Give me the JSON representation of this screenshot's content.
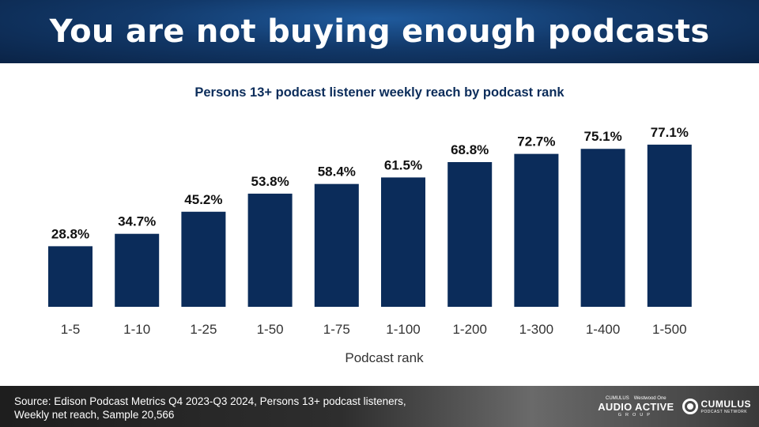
{
  "header": {
    "title": "You are not buying enough podcasts"
  },
  "chart_data": {
    "type": "bar",
    "title": "Persons 13+ podcast listener weekly reach by podcast rank",
    "xlabel": "Podcast rank",
    "ylabel": "",
    "categories": [
      "1-5",
      "1-10",
      "1-25",
      "1-50",
      "1-75",
      "1-100",
      "1-200",
      "1-300",
      "1-400",
      "1-500"
    ],
    "values": [
      28.8,
      34.7,
      45.2,
      53.8,
      58.4,
      61.5,
      68.8,
      72.7,
      75.1,
      77.1
    ],
    "labels": [
      "28.8%",
      "34.7%",
      "45.2%",
      "53.8%",
      "58.4%",
      "61.5%",
      "68.8%",
      "72.7%",
      "75.1%",
      "77.1%"
    ],
    "ylim": [
      0,
      100
    ],
    "grid": false,
    "legend": "none",
    "bar_color": "#0b2c5a"
  },
  "footer": {
    "source_line1": "Source: Edison Podcast Metrics Q4 2023-Q3 2024, Persons 13+ podcast listeners,",
    "source_line2": "Weekly net reach, Sample 20,566"
  },
  "logos": {
    "aag_top_left": "CUMULUS",
    "aag_top_right": "Westwood One",
    "aag_main": "AUDIO ACTIVE",
    "aag_sub": "GROUP",
    "cumulus_main": "CUMULUS",
    "cumulus_sub": "PODCAST NETWORK"
  }
}
